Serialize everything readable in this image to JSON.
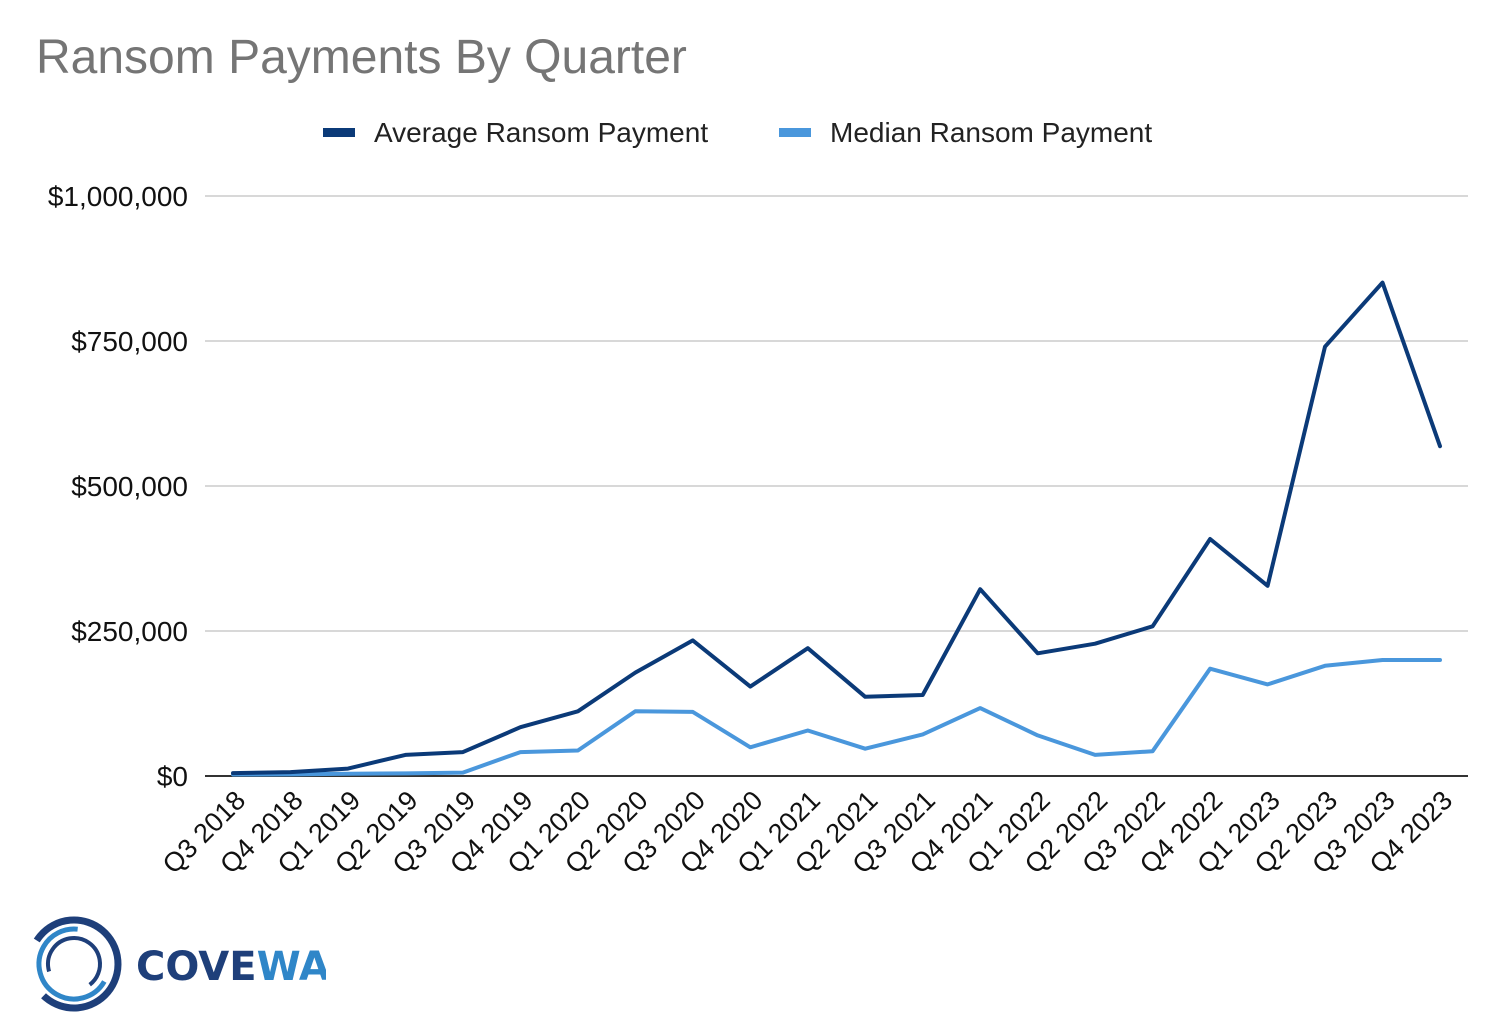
{
  "chart_data": {
    "type": "line",
    "title": "Ransom Payments By Quarter",
    "categories": [
      "Q3 2018",
      "Q4 2018",
      "Q1 2019",
      "Q2 2019",
      "Q3 2019",
      "Q4 2019",
      "Q1 2020",
      "Q2 2020",
      "Q3 2020",
      "Q4 2020",
      "Q1 2021",
      "Q2 2021",
      "Q3 2021",
      "Q4 2021",
      "Q1 2022",
      "Q2 2022",
      "Q3 2022",
      "Q4 2022",
      "Q1 2023",
      "Q2 2023",
      "Q3 2023",
      "Q4 2023"
    ],
    "series": [
      {
        "name": "Average Ransom Payment",
        "color": "#0b3a78",
        "values": [
          5000,
          6700,
          12800,
          36300,
          41200,
          84100,
          111600,
          178300,
          233800,
          154100,
          220300,
          136600,
          139700,
          322100,
          211500,
          228100,
          258100,
          408600,
          327900,
          740100,
          850700,
          568700
        ]
      },
      {
        "name": "Median Ransom Payment",
        "color": "#4a97dc",
        "values": [
          2500,
          2800,
          4000,
          4400,
          5900,
          41200,
          44000,
          111600,
          110500,
          49500,
          78400,
          47000,
          71700,
          117000,
          70000,
          36400,
          42800,
          185000,
          158000,
          190000,
          200000,
          200000
        ]
      }
    ],
    "y_ticks": [
      "$0",
      "$250,000",
      "$500,000",
      "$750,000",
      "$1,000,000"
    ],
    "y_tick_values": [
      0,
      250000,
      500000,
      750000,
      1000000
    ],
    "ylim": [
      0,
      1000000
    ],
    "grid": true,
    "legend_position": "top-center"
  },
  "brand": {
    "name_part1": "COVE",
    "name_part2": "WARE",
    "color_dark": "#1e3f7a",
    "color_light": "#2f86c8"
  }
}
